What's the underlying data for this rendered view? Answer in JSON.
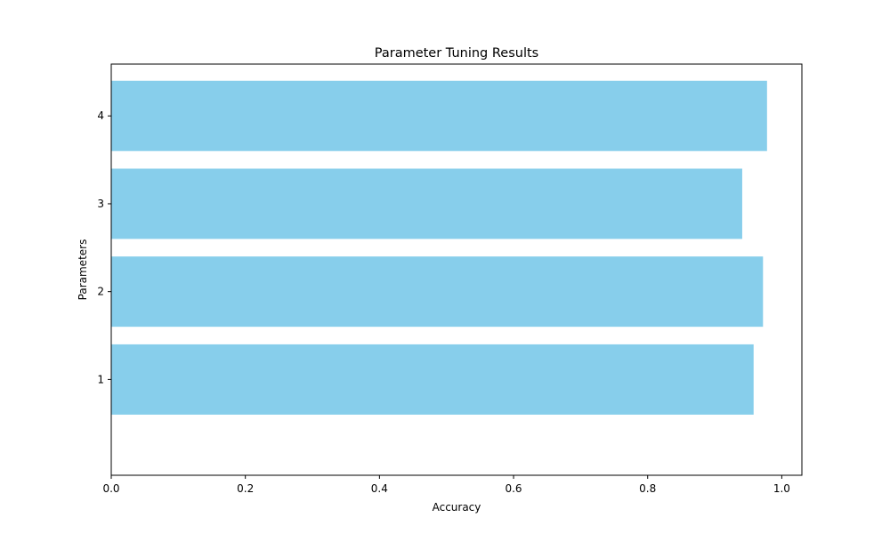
{
  "chart_data": {
    "type": "bar",
    "orientation": "horizontal",
    "title": "Parameter Tuning Results",
    "xlabel": "Accuracy",
    "ylabel": "Parameters",
    "categories": [
      "1",
      "2",
      "3",
      "4"
    ],
    "values": [
      0.958,
      0.972,
      0.941,
      0.978
    ],
    "xlim": [
      0.0,
      1.03
    ],
    "xticks": [
      "0.0",
      "0.2",
      "0.4",
      "0.6",
      "0.8",
      "1.0"
    ],
    "grid": false,
    "legend": "none",
    "bar_color": "#87CEEB"
  }
}
